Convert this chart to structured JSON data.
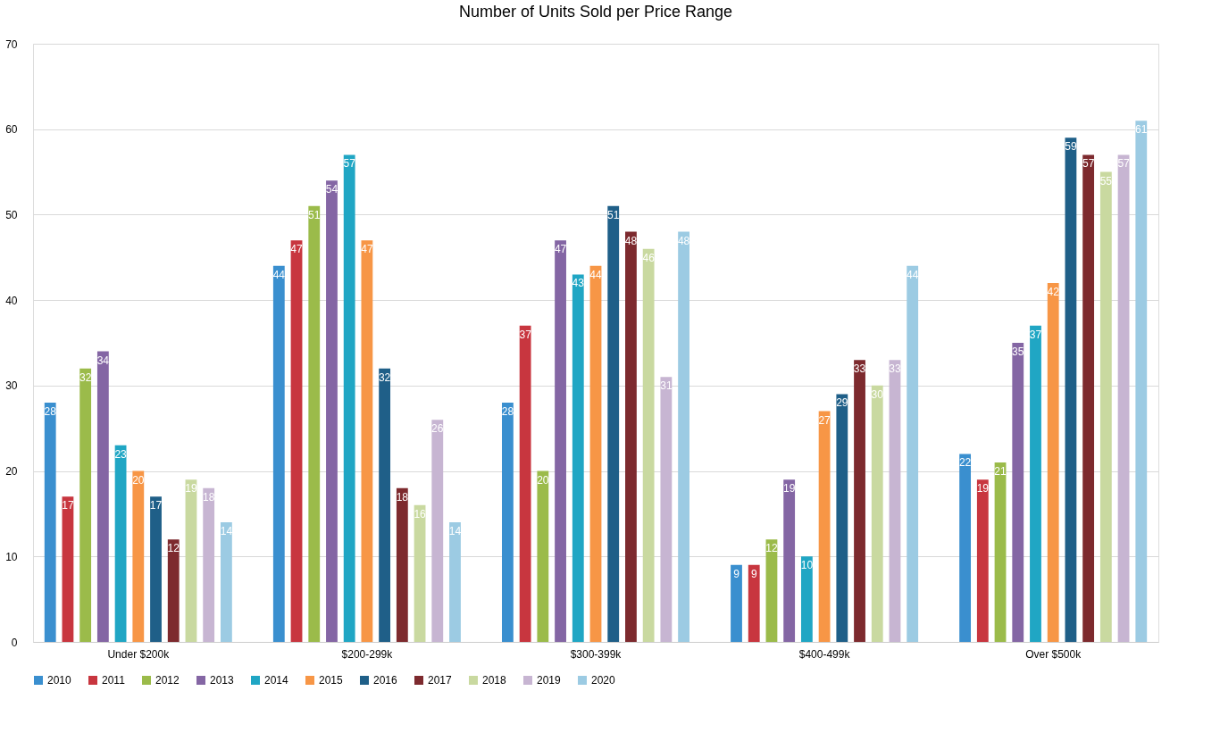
{
  "chart_data": {
    "type": "bar",
    "title": "Number of Units Sold per Price Range",
    "categories": [
      "Under $200k",
      "$200-299k",
      "$300-399k",
      "$400-499k",
      "Over $500k"
    ],
    "series": [
      {
        "name": "2010",
        "color": "#3a8fcf",
        "values": [
          28,
          44,
          28,
          9,
          22
        ]
      },
      {
        "name": "2011",
        "color": "#c8363f",
        "values": [
          17,
          47,
          37,
          9,
          19
        ]
      },
      {
        "name": "2012",
        "color": "#9bbb4a",
        "values": [
          32,
          51,
          20,
          12,
          21
        ]
      },
      {
        "name": "2013",
        "color": "#8466a4",
        "values": [
          34,
          54,
          47,
          19,
          35
        ]
      },
      {
        "name": "2014",
        "color": "#20a6c4",
        "values": [
          23,
          57,
          43,
          10,
          37
        ]
      },
      {
        "name": "2015",
        "color": "#f79646",
        "values": [
          20,
          47,
          44,
          27,
          42
        ]
      },
      {
        "name": "2016",
        "color": "#1f5f88",
        "values": [
          17,
          32,
          51,
          29,
          59
        ]
      },
      {
        "name": "2017",
        "color": "#7d2a2e",
        "values": [
          12,
          18,
          48,
          33,
          57
        ]
      },
      {
        "name": "2018",
        "color": "#c9d9a0",
        "values": [
          19,
          16,
          46,
          30,
          55
        ]
      },
      {
        "name": "2019",
        "color": "#c7b5d2",
        "values": [
          18,
          26,
          31,
          33,
          57
        ]
      },
      {
        "name": "2020",
        "color": "#9ccbe3",
        "values": [
          14,
          14,
          48,
          44,
          61
        ]
      }
    ],
    "ylim": [
      0,
      70
    ],
    "yticks": [
      0,
      10,
      20,
      30,
      40,
      50,
      60,
      70
    ],
    "grid": "y",
    "legend": "bottom",
    "data_labels": true
  }
}
